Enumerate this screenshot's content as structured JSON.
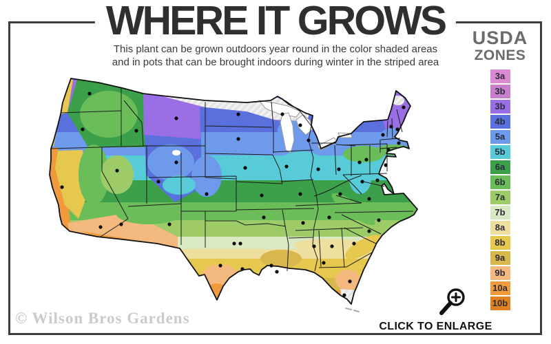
{
  "header": {
    "title": "WHERE IT GROWS",
    "subtitle_line1": "This plant can be grown outdoors year round in the color shaded areas",
    "subtitle_line2": "and in pots that can be brought indoors during winter in the striped area"
  },
  "legend": {
    "title_line1": "USDA",
    "title_line2": "ZONES",
    "zones": [
      {
        "label": "3a",
        "color": "#d98ad3"
      },
      {
        "label": "3b",
        "color": "#c77fcb"
      },
      {
        "label": "3b",
        "color": "#9a6fe6"
      },
      {
        "label": "4b",
        "color": "#5a70dd"
      },
      {
        "label": "5a",
        "color": "#6d9aea"
      },
      {
        "label": "5b",
        "color": "#58cbd8"
      },
      {
        "label": "6a",
        "color": "#3ca04a"
      },
      {
        "label": "6b",
        "color": "#6abd58"
      },
      {
        "label": "7a",
        "color": "#9ccb68"
      },
      {
        "label": "7b",
        "color": "#d9e9c3"
      },
      {
        "label": "8a",
        "color": "#efdf9f"
      },
      {
        "label": "8b",
        "color": "#e7c84f"
      },
      {
        "label": "9a",
        "color": "#d8b84c"
      },
      {
        "label": "9b",
        "color": "#f4b97e"
      },
      {
        "label": "10a",
        "color": "#ef9a3c"
      },
      {
        "label": "10b",
        "color": "#e0811f"
      }
    ]
  },
  "map": {
    "watermark": "© Wilson Bros Gardens",
    "striped_area_color": "#e3e3e3",
    "outline_color": "#111111"
  },
  "footer": {
    "enlarge_label": "CLICK TO ENLARGE"
  }
}
